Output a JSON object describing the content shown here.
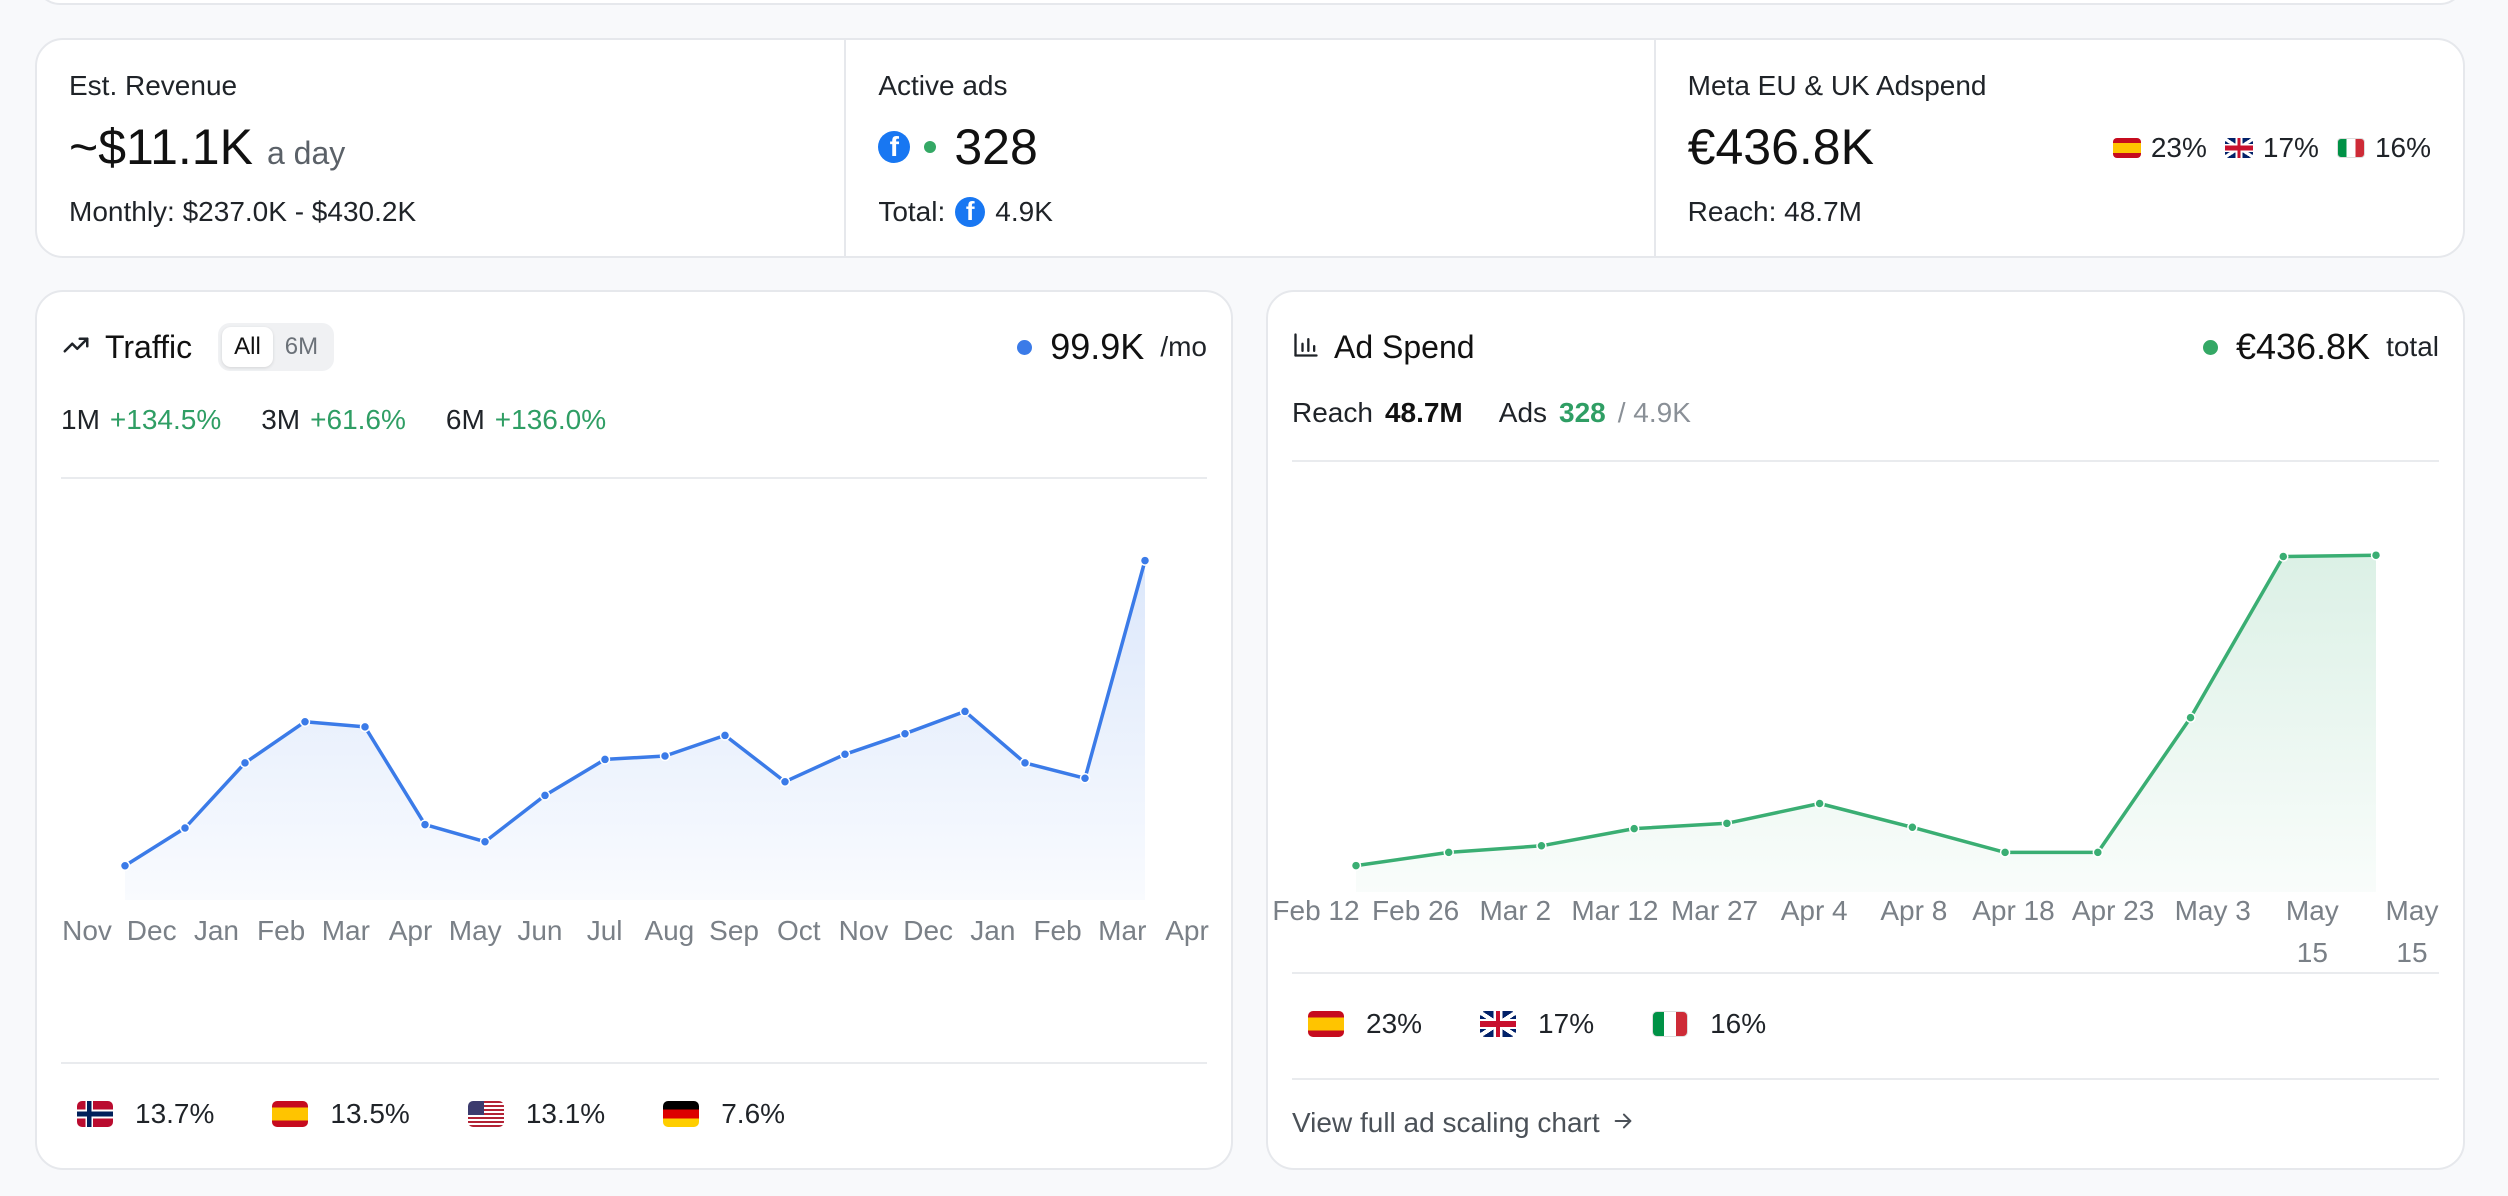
{
  "stats": {
    "revenue": {
      "label": "Est. Revenue",
      "value": "~$11.1K",
      "suffix": "a day",
      "monthly": "Monthly: $237.0K - $430.2K"
    },
    "active_ads": {
      "label": "Active ads",
      "value": "328",
      "total_label": "Total:",
      "total_value": "4.9K",
      "platform_icon": "facebook-icon"
    },
    "adspend": {
      "label": "Meta EU & UK Adspend",
      "value": "€436.8K",
      "reach": "Reach: 48.7M",
      "countries": [
        {
          "flag": "flag-es",
          "pct": "23%"
        },
        {
          "flag": "flag-gb",
          "pct": "17%"
        },
        {
          "flag": "flag-it",
          "pct": "16%"
        }
      ]
    }
  },
  "traffic": {
    "title": "Traffic",
    "icon": "trending-up-icon",
    "ranges": [
      "All",
      "6M"
    ],
    "active_range": "All",
    "value": "99.9K",
    "unit": "/mo",
    "dot_color": "#3b7be8",
    "growth": [
      {
        "period": "1M",
        "change": "+134.5%"
      },
      {
        "period": "3M",
        "change": "+61.6%"
      },
      {
        "period": "6M",
        "change": "+136.0%"
      }
    ],
    "countries": [
      {
        "flag": "flag-no",
        "pct": "13.7%"
      },
      {
        "flag": "flag-es",
        "pct": "13.5%"
      },
      {
        "flag": "flag-us",
        "pct": "13.1%"
      },
      {
        "flag": "flag-de",
        "pct": "7.6%"
      }
    ]
  },
  "adspend_card": {
    "title": "Ad Spend",
    "icon": "bar-chart-icon",
    "value": "€436.8K",
    "unit": "total",
    "dot_color": "#34a865",
    "reach_label": "Reach",
    "reach_value": "48.7M",
    "ads_label": "Ads",
    "ads_value": "328",
    "ads_total": "/ 4.9K",
    "countries": [
      {
        "flag": "flag-es",
        "pct": "23%"
      },
      {
        "flag": "flag-gb",
        "pct": "17%"
      },
      {
        "flag": "flag-it",
        "pct": "16%"
      }
    ],
    "link": "View full ad scaling chart",
    "link_icon": "arrow-right-icon"
  },
  "chart_data": [
    {
      "type": "area",
      "name": "traffic",
      "categories": [
        "Nov",
        "Dec",
        "Jan",
        "Feb",
        "Mar",
        "Apr",
        "May",
        "Jun",
        "Jul",
        "Aug",
        "Sep",
        "Oct",
        "Nov",
        "Dec",
        "Jan",
        "Feb",
        "Mar",
        "Apr"
      ],
      "values": [
        20,
        42,
        80,
        104,
        101,
        44,
        34,
        61,
        82,
        84,
        96,
        69,
        85,
        97,
        110,
        80,
        71,
        198
      ],
      "color": "#3b7be8",
      "ylim": [
        0,
        210
      ]
    },
    {
      "type": "area",
      "name": "ad_spend",
      "categories": [
        "Feb 12",
        "Feb 26",
        "Mar 2",
        "Mar 12",
        "Mar 27",
        "Apr 4",
        "Apr 8",
        "Apr 18",
        "Apr 23",
        "May 3",
        "May 15",
        "May 15"
      ],
      "values": [
        20,
        30,
        35,
        48,
        52,
        67,
        49,
        30,
        30,
        132,
        254,
        255
      ],
      "color": "#3aae73",
      "ylim": [
        0,
        265
      ]
    }
  ]
}
